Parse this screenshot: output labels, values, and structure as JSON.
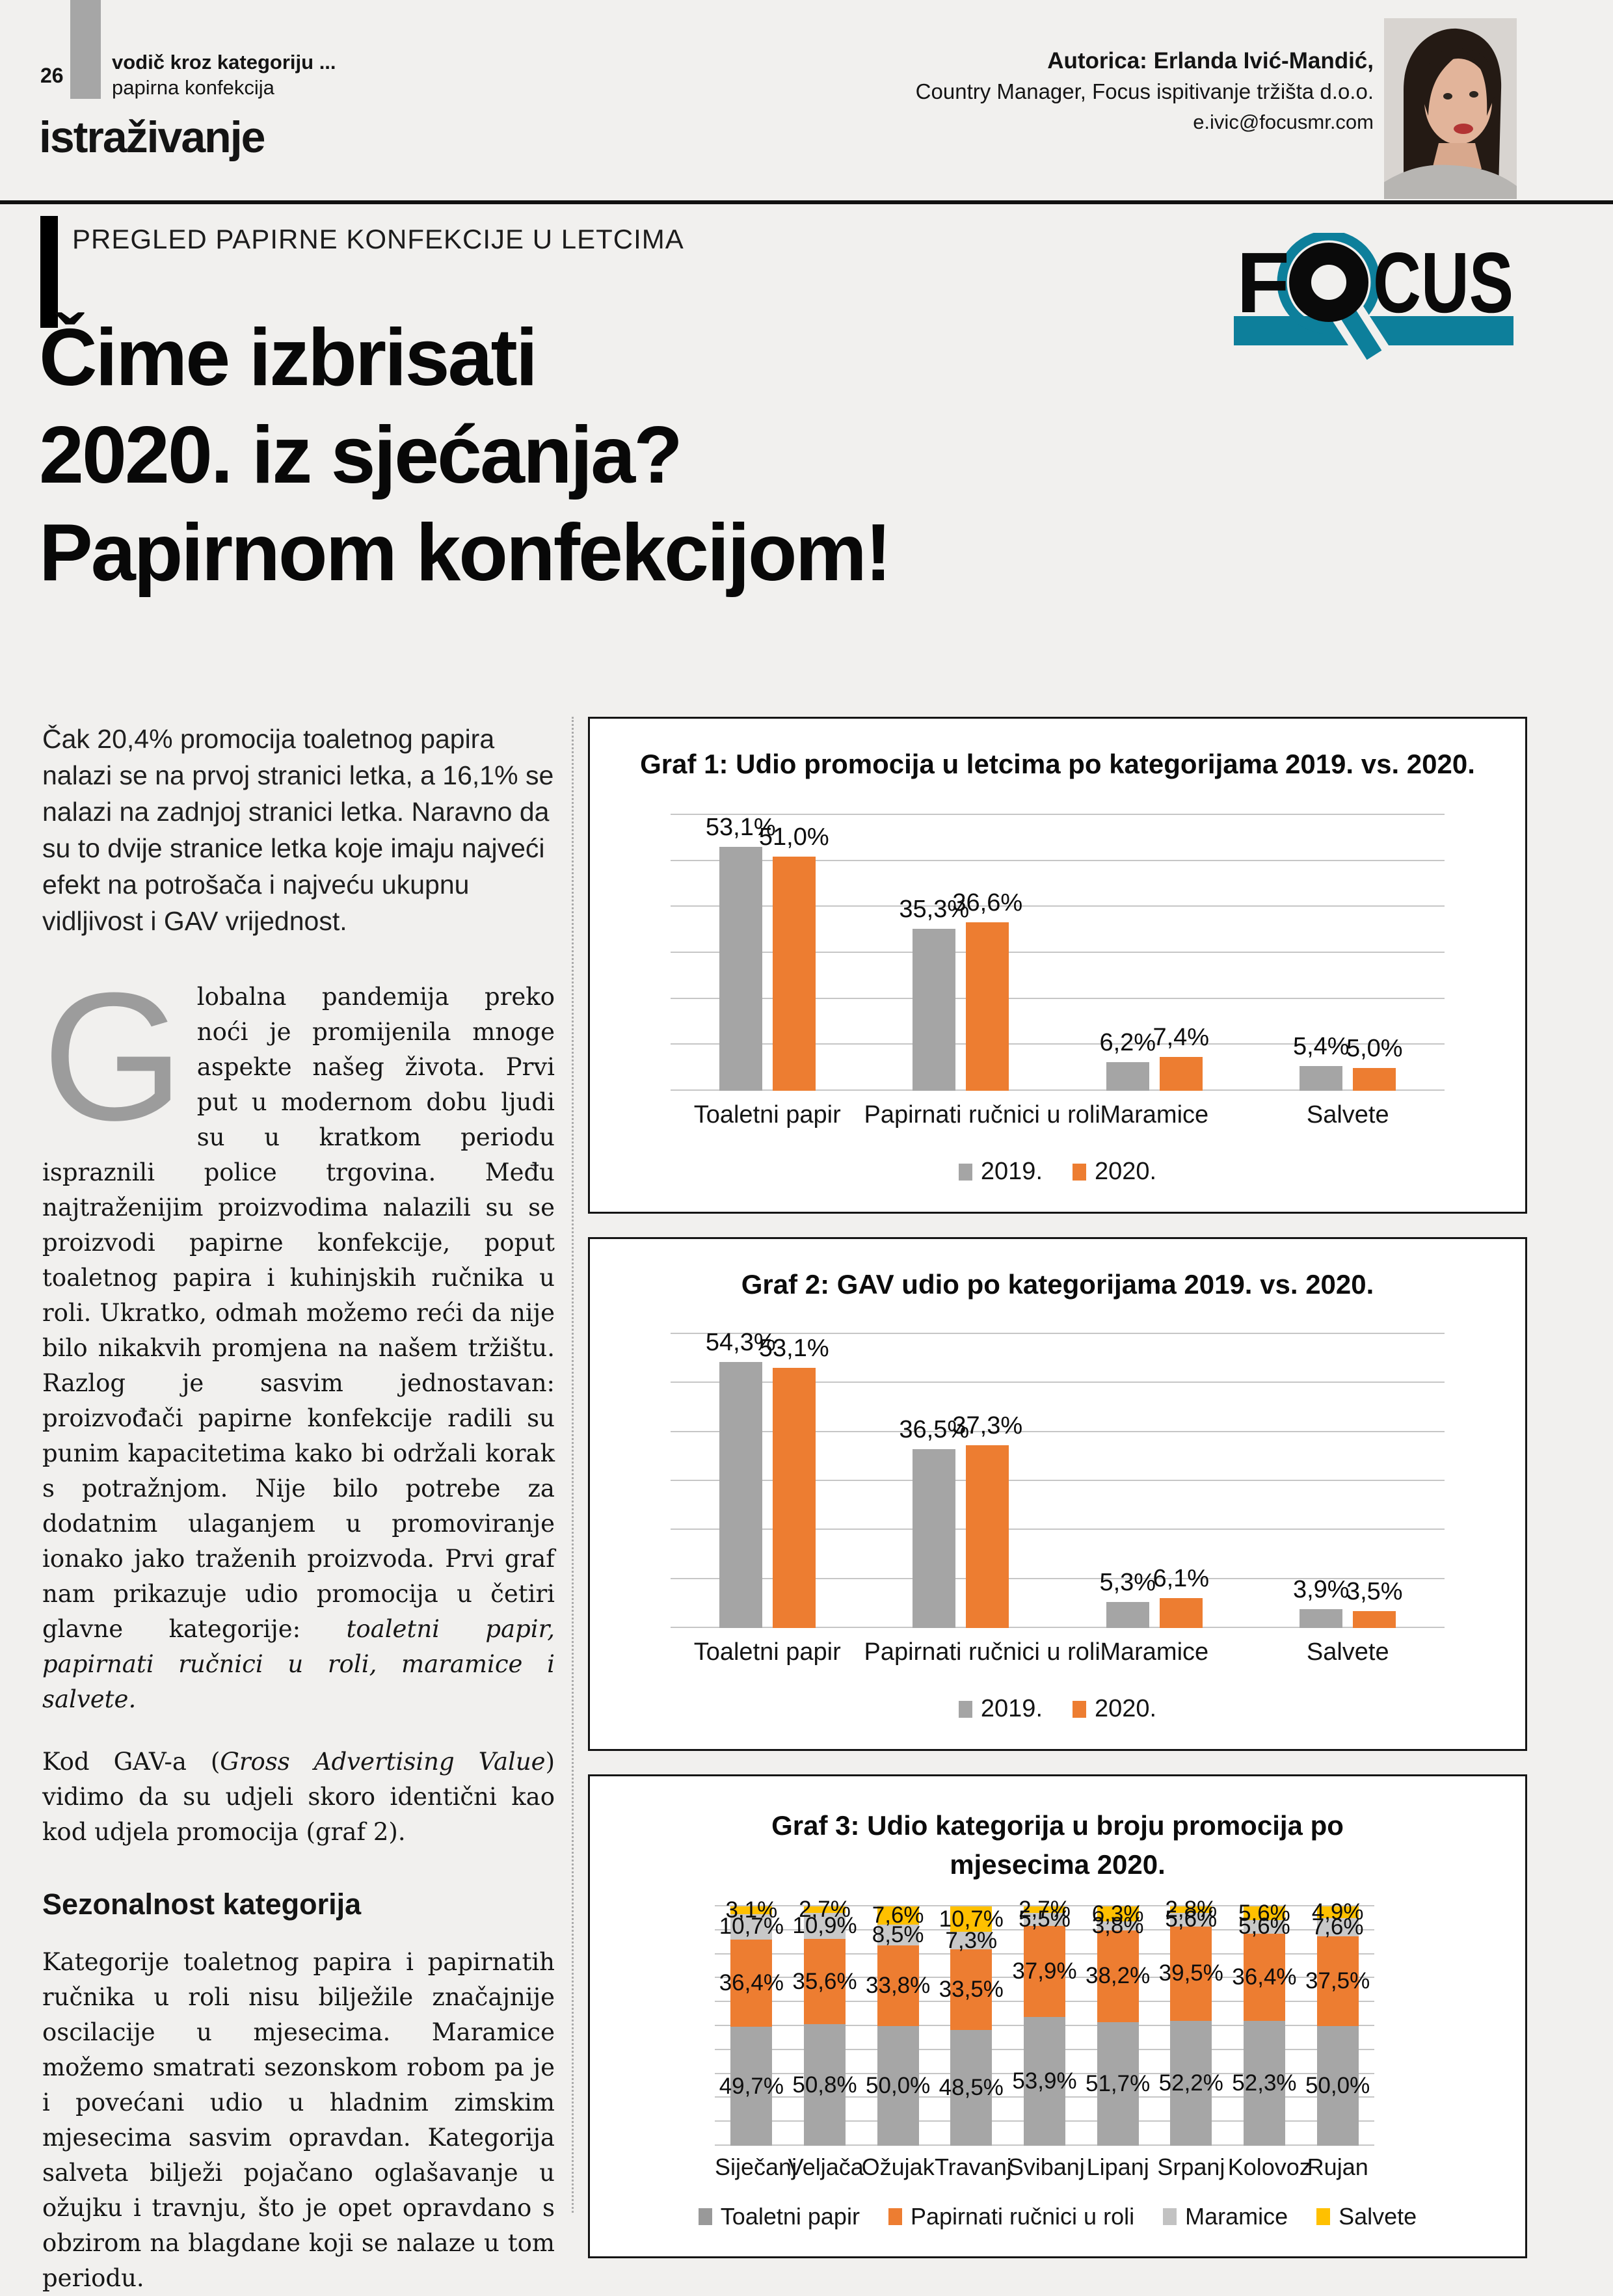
{
  "header": {
    "page_number": "26",
    "kicker_bold": "vodič kroz kategoriju ...",
    "kicker_light": "papirna konfekcija",
    "section_label": "istraživanje",
    "author_line1": "Autorica: Erlanda Ivić-Mandić,",
    "author_line2": "Country Manager, Focus ispitivanje tržišta d.o.o.",
    "author_line3": "e.ivic@focusmr.com",
    "eyebrow": "PREGLED PAPIRNE KONFEKCIJE U LETCIMA",
    "title_lines": [
      "Čime izbrisati",
      "2020. iz sjećanja?",
      "Papirnom konfekcijom!"
    ],
    "logo_f": "F",
    "logo_rest": "CUS"
  },
  "article": {
    "intro": "Čak 20,4% promocija toaletnog papira nalazi se na prvoj stranici letka, a 16,1% se nalazi na zadnjoj stranici letka. Naravno da su to dvije stranice letka koje imaju najveći efekt na potrošača i najveću ukupnu vidljivost i GAV vrijednost.",
    "dropcap": "G",
    "p1_segments": [
      {
        "t": "lobalna pandemija preko noći je promijenila mnoge aspekte našeg života. Prvi put u modernom dobu ljudi su u kratkom periodu ispraznili police trgovina. Među najtraženijim proizvodima nalazili su se proizvodi papirne konfekcije, poput toaletnog papira i kuhinjskih ručnika u roli. Ukratko, odmah možemo reći da nije bilo nikakvih promjena na našem tržištu. Razlog je sasvim jednostavan: proizvođači papirne konfekcije radili su punim kapacitetima kako bi održali korak s potražnjom. Nije bilo potrebe za dodatnim ulaganjem u promoviranje ionako jako traženih proizvoda. Prvi graf nam prikazuje udio promocija u četiri glavne kategorije: ",
        "i": false
      },
      {
        "t": "toaletni papir, papirnati ručnici u roli, maramice i salvete.",
        "i": true
      }
    ],
    "p2_segments": [
      {
        "t": "Kod GAV-a (",
        "i": false
      },
      {
        "t": "Gross Advertising Value",
        "i": true
      },
      {
        "t": ") vidimo da su udjeli skoro identični kao kod udjela promocija (graf 2).",
        "i": false
      }
    ],
    "subhead": "Sezonalnost kategorija",
    "p3": "Kategorije toaletnog papira i papirnatih ručnika u roli nisu bilježile značajnije oscilacije u mjesecima. Maramice možemo smatrati sezonskom robom pa je i povećani udio u hladnim zimskim mjesecima sasvim opravdan. Kategorija salveta bilježi pojačano oglašavanje u ožujku i travnju, što je opet opravdano s obzirom na blagdane koji se nalaze u tom periodu."
  },
  "colors": {
    "brand_teal": "#0d7f9b",
    "chart_orange": "#ed7d31",
    "chart_gray_2019": "#a5a5a5",
    "chart_gray_toaletni": "#a6a6a6",
    "chart_light_gray_maramice": "#c8c8c8",
    "chart_yellow_salvete": "#ffc000",
    "page_background": "#f1f0ee"
  },
  "chart_data": [
    {
      "type": "bar",
      "title": "Graf 1: Udio promocija u letcima po kategorijama 2019. vs. 2020.",
      "categories": [
        "Toaletni papir",
        "Papirnati ručnici u roli",
        "Maramice",
        "Salvete"
      ],
      "series": [
        {
          "name": "2019.",
          "color": "#a5a5a5",
          "values": [
            53.1,
            35.3,
            6.2,
            5.4
          ],
          "labels": [
            "53,1%",
            "35,3%",
            "6,2%",
            "5,4%"
          ]
        },
        {
          "name": "2020.",
          "color": "#ed7d31",
          "values": [
            51.0,
            36.6,
            7.4,
            5.0
          ],
          "labels": [
            "51,0%",
            "36,6%",
            "7,4%",
            "5,0%"
          ]
        }
      ],
      "ylim": [
        0,
        60
      ],
      "gridline_step": 10,
      "grid": true,
      "legend_position": "bottom"
    },
    {
      "type": "bar",
      "title": "Graf 2: GAV udio po kategorijama 2019. vs. 2020.",
      "categories": [
        "Toaletni papir",
        "Papirnati ručnici u roli",
        "Maramice",
        "Salvete"
      ],
      "series": [
        {
          "name": "2019.",
          "color": "#a5a5a5",
          "values": [
            54.3,
            36.5,
            5.3,
            3.9
          ],
          "labels": [
            "54,3%",
            "36,5%",
            "5,3%",
            "3,9%"
          ]
        },
        {
          "name": "2020.",
          "color": "#ed7d31",
          "values": [
            53.1,
            37.3,
            6.1,
            3.5
          ],
          "labels": [
            "53,1%",
            "37,3%",
            "6,1%",
            "3,5%"
          ]
        }
      ],
      "ylim": [
        0,
        60
      ],
      "gridline_step": 10,
      "grid": true,
      "legend_position": "bottom"
    },
    {
      "type": "stacked-bar",
      "title": "Graf 3: Udio kategorija u broju promocija po mjesecima 2020.",
      "categories": [
        "Siječanj",
        "Veljača",
        "Ožujak",
        "Travanj",
        "Svibanj",
        "Lipanj",
        "Srpanj",
        "Kolovoz",
        "Rujan"
      ],
      "series": [
        {
          "name": "Toaletni papir",
          "color": "#a6a6a6",
          "legend_color": "#999999",
          "values": [
            49.7,
            50.8,
            50.0,
            48.5,
            53.9,
            51.7,
            52.2,
            52.3,
            50.0
          ],
          "labels": [
            "49,7%",
            "50,8%",
            "50,0%",
            "48,5%",
            "53,9%",
            "51,7%",
            "52,2%",
            "52,3%",
            "50,0%"
          ]
        },
        {
          "name": "Papirnati ručnici u roli",
          "color": "#ed7d31",
          "values": [
            36.4,
            35.6,
            33.8,
            33.5,
            37.9,
            38.2,
            39.5,
            36.4,
            37.5
          ],
          "labels": [
            "36,4%",
            "35,6%",
            "33,8%",
            "33,5%",
            "37,9%",
            "38,2%",
            "39,5%",
            "36,4%",
            "37,5%"
          ]
        },
        {
          "name": "Maramice",
          "color": "#c8c8c8",
          "legend_color": "#c2c2c2",
          "values": [
            10.7,
            10.9,
            8.5,
            7.3,
            5.5,
            3.8,
            5.6,
            5.6,
            7.6
          ],
          "labels": [
            "10,7%",
            "10,9%",
            "8,5%",
            "7,3%",
            "5,5%",
            "3,8%",
            "5,6%",
            "5,6%",
            "7,6%"
          ]
        },
        {
          "name": "Salvete",
          "color": "#ffc000",
          "values": [
            3.1,
            2.7,
            7.6,
            10.7,
            2.7,
            6.3,
            2.8,
            5.6,
            4.9
          ],
          "labels": [
            "3,1%",
            "2,7%",
            "7,6%",
            "10,7%",
            "2,7%",
            "6,3%",
            "2,8%",
            "5,6%",
            "4,9%"
          ]
        }
      ],
      "ylim": [
        0,
        100
      ],
      "gridline_step": 10,
      "grid": true,
      "legend_position": "bottom"
    }
  ]
}
